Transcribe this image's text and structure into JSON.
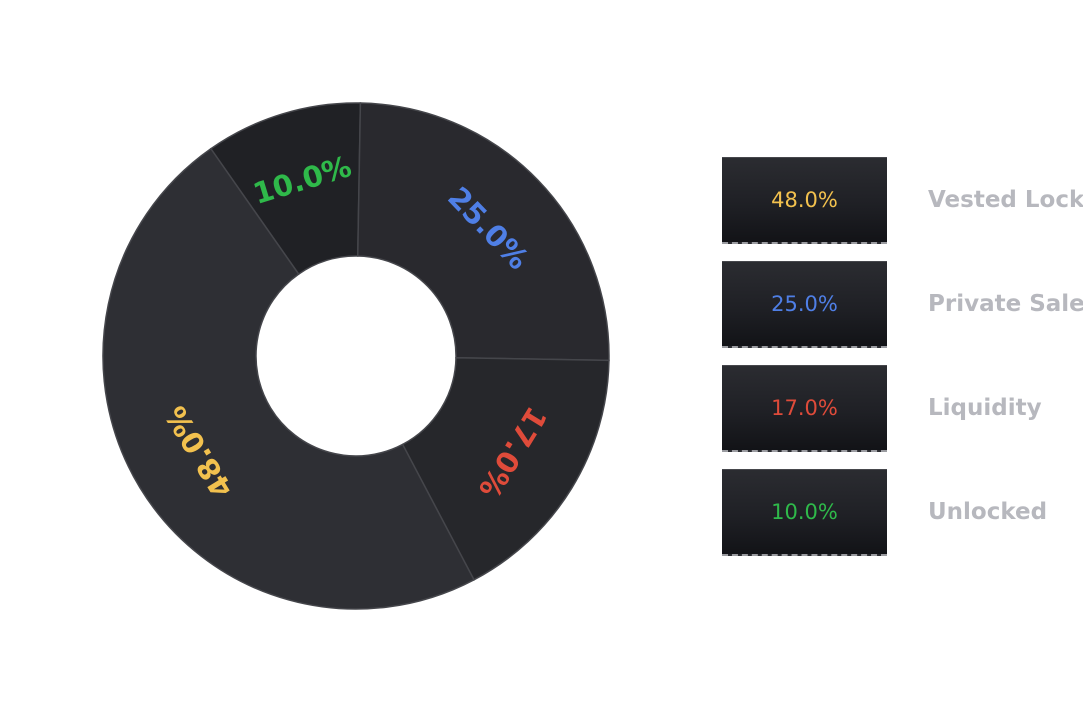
{
  "chart_data": {
    "type": "pie",
    "title": "",
    "slices": [
      {
        "name": "Vested Lock",
        "value": 48.0,
        "label": "48.0%",
        "color": "#f2c14e"
      },
      {
        "name": "Private Sale",
        "value": 25.0,
        "label": "25.0%",
        "color": "#4f7fe6"
      },
      {
        "name": "Liquidity",
        "value": 17.0,
        "label": "17.0%",
        "color": "#df4b3a"
      },
      {
        "name": "Unlocked",
        "value": 10.0,
        "label": "10.0%",
        "color": "#2fb94a"
      }
    ],
    "legend_position": "right",
    "donut": true
  },
  "colors": {
    "slice_fill": "#2b2b30",
    "slice_fill_alt": "#232428",
    "slice_border": "#45464b",
    "legend_text": "#b7b8be"
  },
  "legend": {
    "items": [
      {
        "value_label": "48.0%",
        "name": "Vested Lock",
        "color": "#f2c14e"
      },
      {
        "value_label": "25.0%",
        "name": "Private Sale",
        "color": "#4f7fe6"
      },
      {
        "value_label": "17.0%",
        "name": "Liquidity",
        "color": "#df4b3a"
      },
      {
        "value_label": "10.0%",
        "name": "Unlocked",
        "color": "#2fb94a"
      }
    ]
  }
}
